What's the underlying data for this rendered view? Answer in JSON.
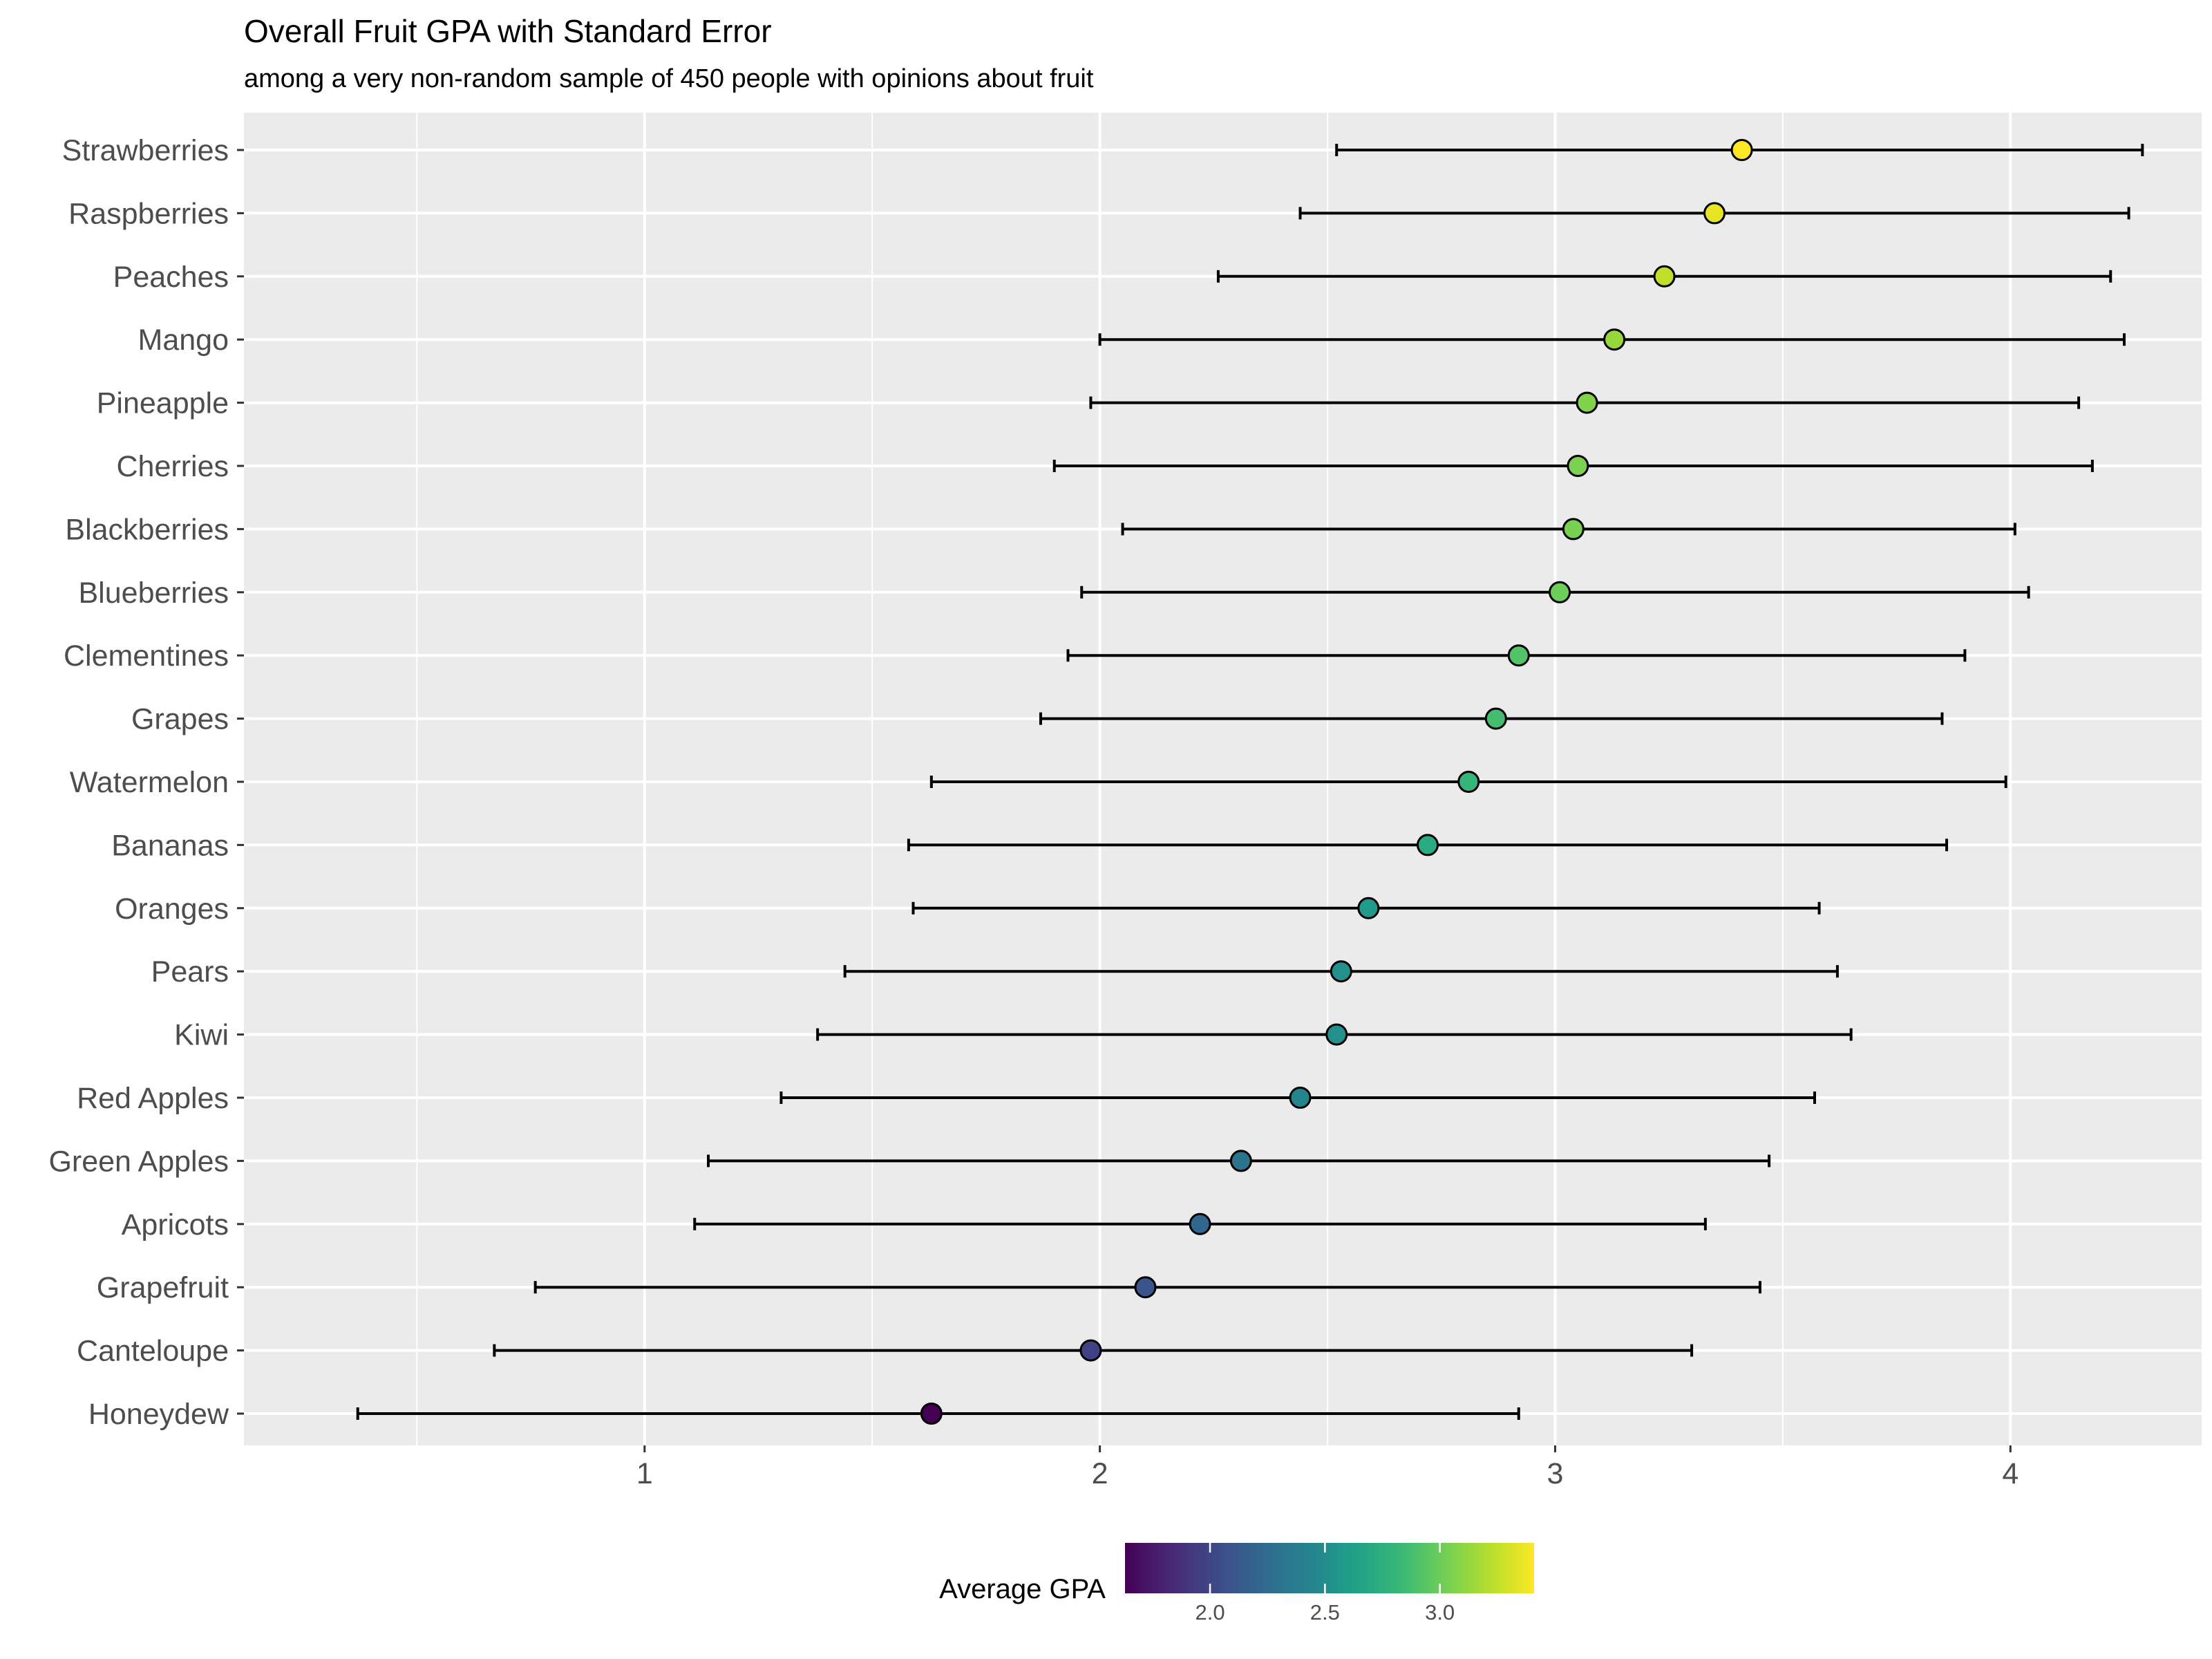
{
  "chart_data": {
    "type": "scatter",
    "title": "Overall Fruit GPA with Standard Error",
    "subtitle": "among a very non-random sample of 450 people with opinions about fruit",
    "xlabel": "",
    "ylabel": "",
    "xlim": [
      0.12,
      4.42
    ],
    "x_ticks": [
      "1",
      "2",
      "3",
      "4"
    ],
    "grid": true,
    "error_bars": "standard error",
    "legend": {
      "title": "Average GPA",
      "position": "bottom",
      "ticks": [
        "2.0",
        "2.5",
        "3.0"
      ],
      "range": [
        1.63,
        3.41
      ],
      "palette": "viridis"
    },
    "colors": {
      "panel_background": "#ebebeb",
      "grid": "#ffffff",
      "errorbar": "#000000",
      "point_outline": "#000000"
    },
    "categories": [
      "Strawberries",
      "Raspberries",
      "Peaches",
      "Mango",
      "Pineapple",
      "Cherries",
      "Blackberries",
      "Blueberries",
      "Clementines",
      "Grapes",
      "Watermelon",
      "Bananas",
      "Oranges",
      "Pears",
      "Kiwi",
      "Red Apples",
      "Green Apples",
      "Apricots",
      "Grapefruit",
      "Canteloupe",
      "Honeydew"
    ],
    "series": [
      {
        "values": [
          3.41,
          3.35,
          3.24,
          3.13,
          3.07,
          3.05,
          3.04,
          3.01,
          2.92,
          2.87,
          2.81,
          2.72,
          2.59,
          2.53,
          2.52,
          2.44,
          2.31,
          2.22,
          2.1,
          1.98,
          1.63
        ],
        "lower": [
          2.52,
          2.44,
          2.26,
          2.0,
          1.98,
          1.9,
          2.05,
          1.96,
          1.93,
          1.87,
          1.63,
          1.58,
          1.59,
          1.44,
          1.38,
          1.3,
          1.14,
          1.11,
          0.76,
          0.67,
          0.37
        ],
        "upper": [
          4.29,
          4.26,
          4.22,
          4.25,
          4.15,
          4.18,
          4.01,
          4.04,
          3.9,
          3.85,
          3.99,
          3.86,
          3.58,
          3.62,
          3.65,
          3.57,
          3.47,
          3.33,
          3.45,
          3.3,
          2.92
        ]
      }
    ]
  }
}
